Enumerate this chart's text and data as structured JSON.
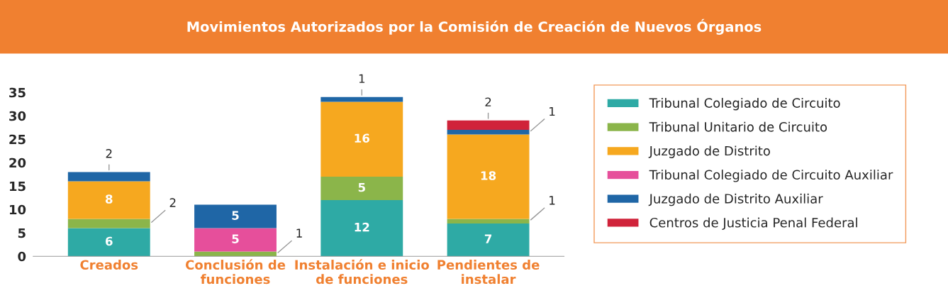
{
  "chart_data": {
    "type": "bar",
    "title": "Movimientos Autorizados por la Comisión de Creación de Nuevos Órganos",
    "categories": [
      "Creados",
      "Conclusión de\nfunciones",
      "Instalación e inicio\nde funciones",
      "Pendientes de\ninstalar"
    ],
    "stacked": true,
    "ylim": [
      0,
      35
    ],
    "yticks": [
      0,
      5,
      10,
      15,
      20,
      25,
      30,
      35
    ],
    "grid": false,
    "legend": "right",
    "series": [
      {
        "name": "Tribunal Colegiado de Circuito",
        "color": "#2eaaa5",
        "values": [
          6,
          null,
          12,
          7
        ],
        "value_labels": [
          "6",
          null,
          "12",
          "7"
        ]
      },
      {
        "name": "Tribunal Unitario de Circuito",
        "color": "#8bb54a",
        "values": [
          2,
          1,
          5,
          1
        ],
        "value_labels": [
          "2",
          "1",
          "5",
          "1"
        ]
      },
      {
        "name": "Juzgado de Distrito",
        "color": "#f6a81f",
        "values": [
          8,
          null,
          16,
          18
        ],
        "value_labels": [
          "8",
          null,
          "16",
          "18"
        ]
      },
      {
        "name": "Tribunal Colegiado de Circuito Auxiliar",
        "color": "#e64f9b",
        "values": [
          null,
          5,
          null,
          null
        ],
        "value_labels": [
          null,
          "5",
          null,
          null
        ]
      },
      {
        "name": "Juzgado de Distrito Auxiliar",
        "color": "#1f66a6",
        "values": [
          2,
          5,
          1,
          1
        ],
        "value_labels": [
          "2",
          "5",
          "1",
          "1"
        ]
      },
      {
        "name": "Centros de Justicia Penal Federal",
        "color": "#d0233a",
        "values": [
          null,
          null,
          null,
          2
        ],
        "value_labels": [
          null,
          null,
          null,
          "2"
        ]
      }
    ]
  }
}
